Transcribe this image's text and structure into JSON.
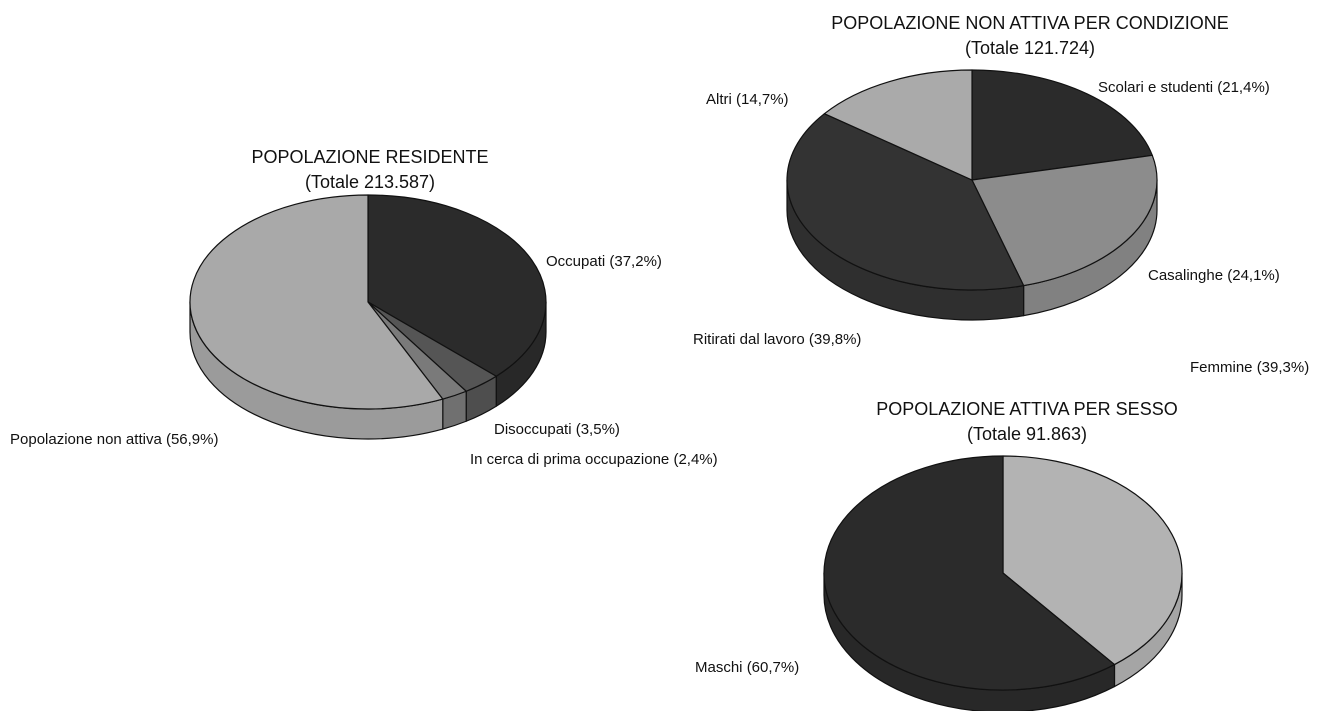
{
  "chart_data": [
    {
      "type": "pie",
      "title": "POPOLAZIONE RESIDENTE",
      "subtitle": "(Totale 213.587)",
      "categories": [
        "Occupati",
        "Disoccupati",
        "In cerca di prima occupazione",
        "Popolazione non attiva"
      ],
      "values": [
        37.2,
        3.5,
        2.4,
        56.9
      ],
      "value_labels": [
        "(37,2%)",
        "(3,5%)",
        "(2,4%)",
        "(56,9%)"
      ],
      "colors": [
        "#2b2b2b",
        "#555555",
        "#7a7a7a",
        "#a9a9a9"
      ]
    },
    {
      "type": "pie",
      "title": "POPOLAZIONE NON ATTIVA PER CONDIZIONE",
      "subtitle": "(Totale 121.724)",
      "categories": [
        "Scolari e studenti",
        "Casalinghe",
        "Ritirati dal lavoro",
        "Altri"
      ],
      "values": [
        21.4,
        24.1,
        39.8,
        14.7
      ],
      "value_labels": [
        "(21,4%)",
        "(24,1%)",
        "(39,8%)",
        "(14,7%)"
      ],
      "colors": [
        "#2b2b2b",
        "#8c8c8c",
        "#333333",
        "#aaaaaa"
      ]
    },
    {
      "type": "pie",
      "title": "POPOLAZIONE ATTIVA PER SESSO",
      "subtitle": "(Totale 91.863)",
      "categories": [
        "Femmine",
        "Maschi"
      ],
      "values": [
        39.3,
        60.7
      ],
      "value_labels": [
        "(39,3%)",
        "(60,7%)"
      ],
      "colors": [
        "#b3b3b3",
        "#2b2b2b"
      ]
    }
  ]
}
